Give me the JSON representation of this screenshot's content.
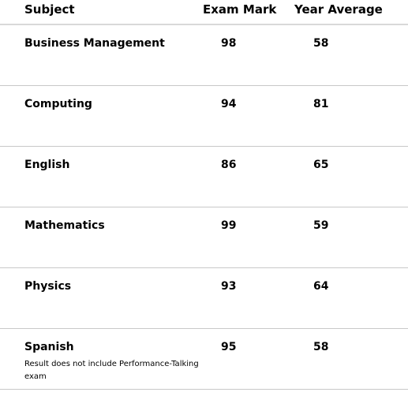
{
  "table": {
    "headers": {
      "subject": "Subject",
      "exam_mark": "Exam Mark",
      "year_average": "Year Average"
    },
    "rows": [
      {
        "subject": "Business Management",
        "exam_mark": "98",
        "year_average": "58",
        "note": ""
      },
      {
        "subject": "Computing",
        "exam_mark": "94",
        "year_average": "81",
        "note": ""
      },
      {
        "subject": "English",
        "exam_mark": "86",
        "year_average": "65",
        "note": ""
      },
      {
        "subject": "Mathematics",
        "exam_mark": "99",
        "year_average": "59",
        "note": ""
      },
      {
        "subject": "Physics",
        "exam_mark": "93",
        "year_average": "64",
        "note": ""
      },
      {
        "subject": "Spanish",
        "exam_mark": "95",
        "year_average": "58",
        "note": "Result does not include Performance-Talking exam"
      }
    ]
  }
}
